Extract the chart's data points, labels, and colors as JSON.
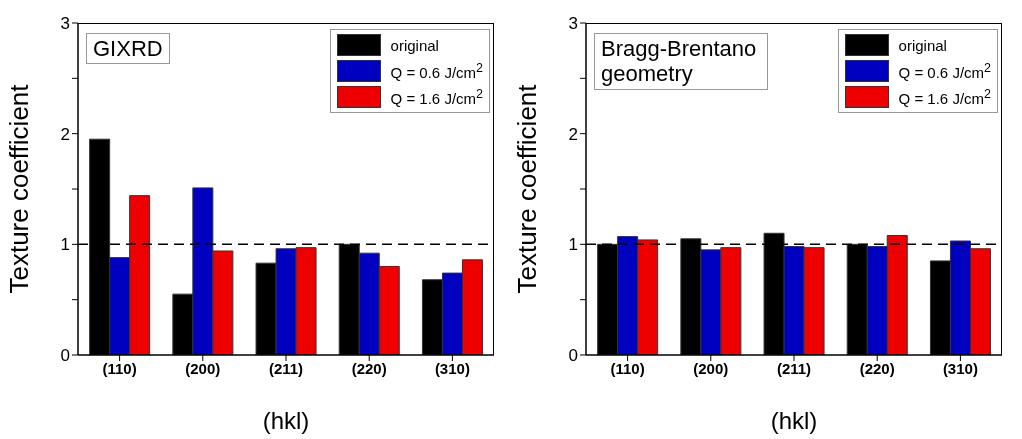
{
  "chart_data": [
    {
      "type": "bar",
      "categories": [
        "(110)",
        "(200)",
        "(211)",
        "(220)",
        "(310)"
      ],
      "xlabel": "(hkl)",
      "ylabel": "Texture coefficient",
      "ylim": [
        0,
        3
      ],
      "yticks": [
        0,
        {
          "value": 0.5,
          "label": null
        },
        1,
        {
          "value": 1.5,
          "label": null
        },
        2,
        {
          "value": 2.5,
          "label": null
        },
        3
      ],
      "legend": "top right",
      "annotations": [
        "GIXRD"
      ],
      "series": [
        {
          "name": "original",
          "color": "#000000",
          "values": [
            1.95,
            0.55,
            0.83,
            1.0,
            0.68
          ]
        },
        {
          "name": "Q = 0.6 J/cm$^{2}$",
          "color": "#0000c0",
          "values": [
            0.88,
            1.51,
            0.96,
            0.92,
            0.74
          ]
        },
        {
          "name": "Q = 1.6 J/cm$^{2}$",
          "color": "#ee0000",
          "values": [
            1.44,
            0.94,
            0.97,
            0.8,
            0.86
          ]
        }
      ],
      "ref_lines": [
        {
          "axis": "y",
          "value": 1,
          "label": null,
          "color": "#000000",
          "line_style": "dashed"
        }
      ]
    },
    {
      "type": "bar",
      "categories": [
        "(110)",
        "(200)",
        "(211)",
        "(220)",
        "(310)"
      ],
      "xlabel": "(hkl)",
      "ylabel": "Texture coefficient",
      "ylim": [
        0,
        3
      ],
      "yticks": [
        0,
        {
          "value": 0.5,
          "label": null
        },
        1,
        {
          "value": 1.5,
          "label": null
        },
        2,
        {
          "value": 2.5,
          "label": null
        },
        3
      ],
      "legend": "top right",
      "annotations": [
        "Bragg-Brentano geometry"
      ],
      "series": [
        {
          "name": "original",
          "color": "#000000",
          "values": [
            1.0,
            1.05,
            1.1,
            1.0,
            0.85
          ]
        },
        {
          "name": "Q = 0.6 J/cm$^{2}$",
          "color": "#0000c0",
          "values": [
            1.07,
            0.95,
            0.98,
            0.98,
            1.03
          ]
        },
        {
          "name": "Q = 1.6 J/cm$^{2}$",
          "color": "#ee0000",
          "values": [
            1.04,
            0.97,
            0.97,
            1.08,
            0.96
          ]
        }
      ],
      "ref_lines": [
        {
          "axis": "y",
          "value": 1,
          "label": null,
          "color": "#000000",
          "line_style": "dashed"
        }
      ]
    }
  ]
}
